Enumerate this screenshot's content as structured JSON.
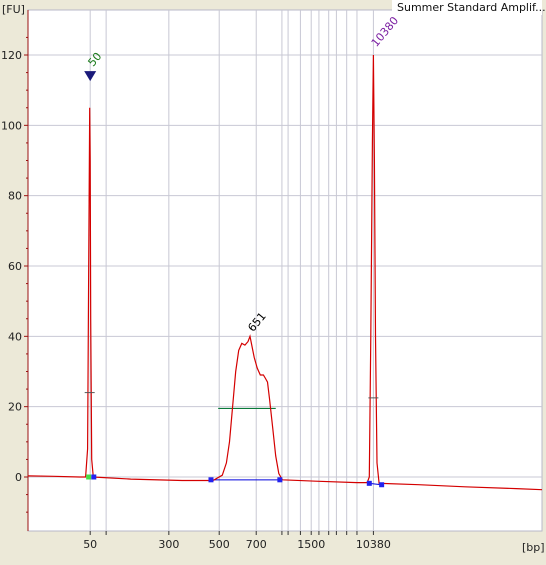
{
  "chart_data": {
    "type": "line",
    "title": "Summer Standard Amplif...",
    "ylabel": "[FU]",
    "xlabel": "[bp]",
    "ylim": [
      -15,
      130
    ],
    "yticks": [
      0,
      20,
      40,
      60,
      80,
      100,
      120
    ],
    "xtick_labels": [
      {
        "label": "50",
        "t": 0.121
      },
      {
        "label": "300",
        "t": 0.274
      },
      {
        "label": "500",
        "t": 0.372
      },
      {
        "label": "700",
        "t": 0.444
      },
      {
        "label": "1500",
        "t": 0.551
      },
      {
        "label": "10380",
        "t": 0.672
      }
    ],
    "peak_labels": [
      {
        "label": "50",
        "t": 0.121,
        "value": 114,
        "color": "#1a7a1a"
      },
      {
        "label": "651",
        "t": 0.432,
        "value": 40,
        "color": "#000000"
      },
      {
        "label": "10380",
        "t": 0.672,
        "value": 121,
        "color": "#7b1fa2"
      }
    ],
    "series": [
      {
        "color": "#d40000",
        "points": [
          [
            0.0,
            0.3
          ],
          [
            0.05,
            0.2
          ],
          [
            0.1,
            0.0
          ],
          [
            0.112,
            0.0
          ],
          [
            0.116,
            8
          ],
          [
            0.118,
            60
          ],
          [
            0.12,
            105
          ],
          [
            0.121,
            90
          ],
          [
            0.122,
            45
          ],
          [
            0.124,
            5
          ],
          [
            0.127,
            0.0
          ],
          [
            0.2,
            -0.6
          ],
          [
            0.3,
            -1.0
          ],
          [
            0.36,
            -1.0
          ],
          [
            0.378,
            0.5
          ],
          [
            0.386,
            4
          ],
          [
            0.392,
            10
          ],
          [
            0.398,
            20
          ],
          [
            0.404,
            30
          ],
          [
            0.41,
            36
          ],
          [
            0.416,
            38
          ],
          [
            0.422,
            37.5
          ],
          [
            0.428,
            38.5
          ],
          [
            0.432,
            40
          ],
          [
            0.436,
            37
          ],
          [
            0.44,
            34
          ],
          [
            0.446,
            31
          ],
          [
            0.452,
            29
          ],
          [
            0.458,
            29
          ],
          [
            0.462,
            28
          ],
          [
            0.466,
            27
          ],
          [
            0.47,
            22
          ],
          [
            0.476,
            14
          ],
          [
            0.482,
            6
          ],
          [
            0.488,
            1
          ],
          [
            0.495,
            -0.8
          ],
          [
            0.56,
            -1.2
          ],
          [
            0.64,
            -1.6
          ],
          [
            0.66,
            -1.6
          ],
          [
            0.664,
            0
          ],
          [
            0.667,
            40
          ],
          [
            0.67,
            95
          ],
          [
            0.672,
            120
          ],
          [
            0.674,
            90
          ],
          [
            0.676,
            40
          ],
          [
            0.679,
            4
          ],
          [
            0.683,
            -1.8
          ],
          [
            0.76,
            -2.2
          ],
          [
            0.85,
            -2.8
          ],
          [
            0.95,
            -3.3
          ],
          [
            1.0,
            -3.6
          ]
        ]
      }
    ],
    "baselines": [
      {
        "color": "#0000dd",
        "from": [
          0.356,
          -0.8
        ],
        "to": [
          0.49,
          -0.8
        ]
      },
      {
        "color": "#0000dd",
        "from": [
          0.664,
          -1.8
        ],
        "to": [
          0.688,
          -2.2
        ]
      }
    ],
    "width_marker": {
      "color": "#0a7a3a",
      "from": [
        0.37,
        19.5
      ],
      "to": [
        0.482,
        19.5
      ]
    },
    "tick_markers": [
      {
        "t": 0.12,
        "value": 24
      },
      {
        "t": 0.672,
        "value": 22.5
      }
    ],
    "region_markers": [
      {
        "t": 0.118,
        "value": 0,
        "color": "#44dd44"
      },
      {
        "t": 0.128,
        "value": 0,
        "color": "#2222ee"
      },
      {
        "t": 0.356,
        "value": -0.8,
        "color": "#2222ee"
      },
      {
        "t": 0.49,
        "value": -0.8,
        "color": "#2222ee"
      },
      {
        "t": 0.664,
        "value": -1.8,
        "color": "#2222ee"
      },
      {
        "t": 0.688,
        "value": -2.2,
        "color": "#2222ee"
      }
    ],
    "grid": true,
    "colors": {
      "background": "#ffffff",
      "frame": "#b8b8c8",
      "grid": "#c8c8d4",
      "axis": "#9a1010"
    }
  }
}
